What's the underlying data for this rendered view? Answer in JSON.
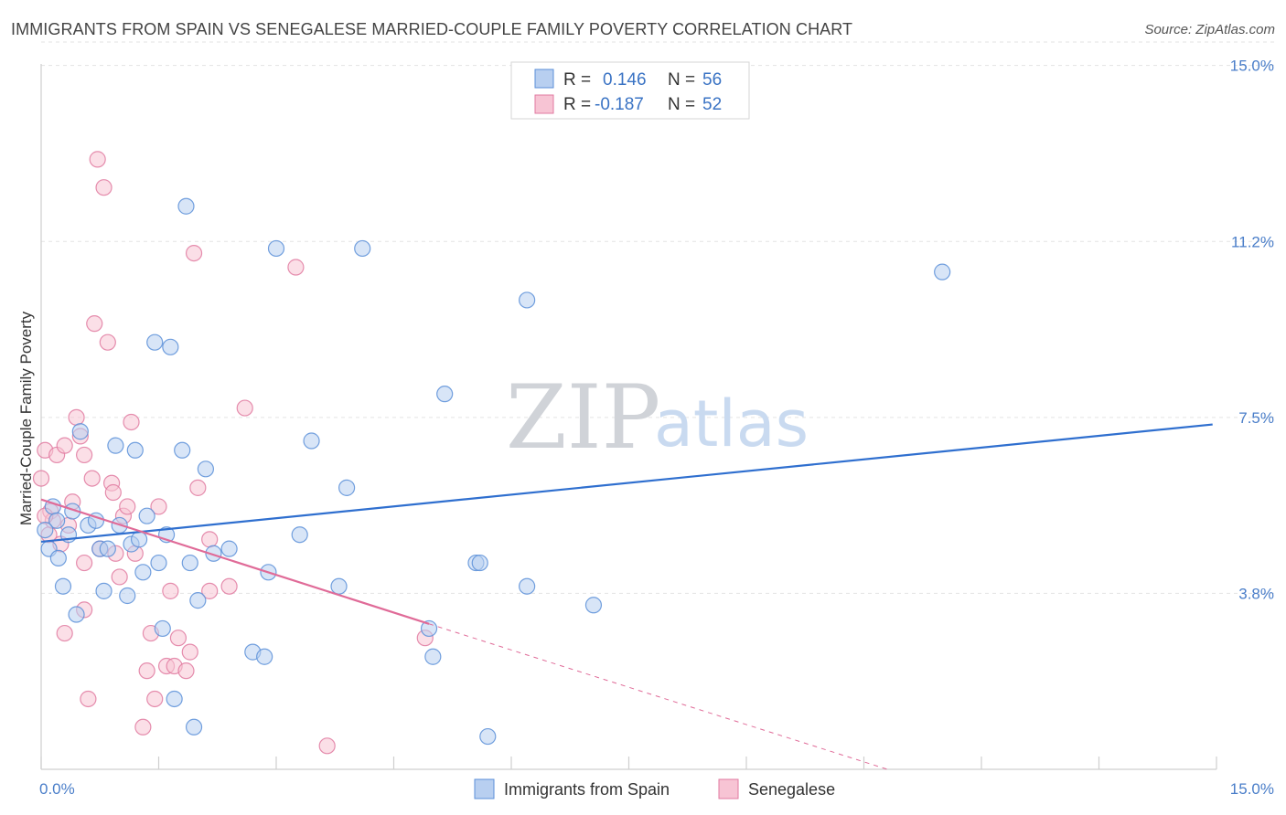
{
  "title": "IMMIGRANTS FROM SPAIN VS SENEGALESE MARRIED-COUPLE FAMILY POVERTY CORRELATION CHART",
  "source": "Source: ZipAtlas.com",
  "watermark": {
    "zip": "ZIP",
    "atlas": "atlas"
  },
  "colors": {
    "blue": "#5b8fd8",
    "blue_fill": "#b8cff0",
    "pink": "#e07aa0",
    "pink_fill": "#f7c4d4",
    "blue_line": "#2f6fcf",
    "pink_line": "#e06b98"
  },
  "legend": {
    "rows": [
      {
        "r_label": "R =",
        "r_value": "0.146",
        "n_label": "N =",
        "n_value": "56"
      },
      {
        "r_label": "R =",
        "r_value": "-0.187",
        "n_label": "N =",
        "n_value": "52"
      }
    ]
  },
  "bottom_legend": [
    "Immigrants from Spain",
    "Senegalese"
  ],
  "chart_data": {
    "type": "scatter",
    "title": "IMMIGRANTS FROM SPAIN VS SENEGALESE MARRIED-COUPLE FAMILY POVERTY CORRELATION CHART",
    "xlabel": "",
    "ylabel": "Married-Couple Family Poverty",
    "xlim": [
      0,
      15
    ],
    "ylim": [
      0,
      15.5
    ],
    "x_tick_labels": [
      "0.0%",
      "15.0%"
    ],
    "y_ticks": [
      3.75,
      7.5,
      11.25,
      15.0
    ],
    "y_tick_labels": [
      "3.8%",
      "7.5%",
      "11.2%",
      "15.0%"
    ],
    "series": [
      {
        "name": "Immigrants from Spain",
        "r": 0.146,
        "n": 56,
        "trend": {
          "x0": 0,
          "y0": 4.85,
          "x1": 14.95,
          "y1": 7.35
        },
        "points": [
          [
            0.1,
            4.7
          ],
          [
            0.15,
            5.6
          ],
          [
            0.2,
            5.3
          ],
          [
            0.22,
            4.5
          ],
          [
            0.28,
            3.9
          ],
          [
            0.35,
            5.0
          ],
          [
            0.45,
            3.3
          ],
          [
            0.5,
            7.2
          ],
          [
            0.6,
            5.2
          ],
          [
            0.7,
            5.3
          ],
          [
            0.75,
            4.7
          ],
          [
            0.8,
            3.8
          ],
          [
            0.85,
            4.7
          ],
          [
            0.95,
            6.9
          ],
          [
            1.0,
            5.2
          ],
          [
            1.1,
            3.7
          ],
          [
            1.15,
            4.8
          ],
          [
            1.2,
            6.8
          ],
          [
            1.25,
            4.9
          ],
          [
            1.3,
            4.2
          ],
          [
            1.35,
            5.4
          ],
          [
            1.45,
            9.1
          ],
          [
            1.5,
            4.4
          ],
          [
            1.55,
            3.0
          ],
          [
            1.6,
            5.0
          ],
          [
            1.65,
            9.0
          ],
          [
            1.7,
            1.5
          ],
          [
            1.8,
            6.8
          ],
          [
            1.85,
            12.0
          ],
          [
            1.9,
            4.4
          ],
          [
            1.95,
            0.9
          ],
          [
            2.0,
            3.6
          ],
          [
            2.1,
            6.4
          ],
          [
            2.2,
            4.6
          ],
          [
            2.4,
            4.7
          ],
          [
            2.7,
            2.5
          ],
          [
            2.85,
            2.4
          ],
          [
            2.9,
            4.2
          ],
          [
            3.0,
            11.1
          ],
          [
            3.3,
            5.0
          ],
          [
            3.45,
            7.0
          ],
          [
            3.8,
            3.9
          ],
          [
            3.9,
            6.0
          ],
          [
            4.1,
            11.1
          ],
          [
            4.95,
            3.0
          ],
          [
            5.0,
            2.4
          ],
          [
            5.15,
            8.0
          ],
          [
            5.55,
            4.4
          ],
          [
            5.6,
            4.4
          ],
          [
            5.7,
            0.7
          ],
          [
            6.2,
            10.0
          ],
          [
            6.2,
            3.9
          ],
          [
            7.05,
            3.5
          ],
          [
            11.5,
            10.6
          ],
          [
            0.05,
            5.1
          ],
          [
            0.4,
            5.5
          ]
        ]
      },
      {
        "name": "Senegalese",
        "r": -0.187,
        "n": 52,
        "trend": {
          "x0": 0,
          "y0": 5.75,
          "x1": 4.95,
          "y1": 3.1
        },
        "trend_dashed": {
          "x0": 4.95,
          "y0": 3.1,
          "x1": 10.8,
          "y1": 0.0
        },
        "points": [
          [
            0.0,
            6.2
          ],
          [
            0.05,
            6.8
          ],
          [
            0.1,
            5.0
          ],
          [
            0.12,
            5.5
          ],
          [
            0.15,
            5.3
          ],
          [
            0.2,
            6.7
          ],
          [
            0.25,
            4.8
          ],
          [
            0.3,
            6.9
          ],
          [
            0.3,
            2.9
          ],
          [
            0.35,
            5.2
          ],
          [
            0.4,
            5.7
          ],
          [
            0.45,
            7.5
          ],
          [
            0.5,
            7.1
          ],
          [
            0.55,
            6.7
          ],
          [
            0.55,
            4.4
          ],
          [
            0.55,
            3.4
          ],
          [
            0.6,
            1.5
          ],
          [
            0.65,
            6.2
          ],
          [
            0.68,
            9.5
          ],
          [
            0.72,
            13.0
          ],
          [
            0.75,
            4.7
          ],
          [
            0.8,
            12.4
          ],
          [
            0.85,
            9.1
          ],
          [
            0.9,
            6.1
          ],
          [
            0.92,
            5.9
          ],
          [
            0.95,
            4.6
          ],
          [
            1.0,
            4.1
          ],
          [
            1.05,
            5.4
          ],
          [
            1.1,
            5.6
          ],
          [
            1.15,
            7.4
          ],
          [
            1.2,
            4.6
          ],
          [
            1.3,
            0.9
          ],
          [
            1.35,
            2.1
          ],
          [
            1.4,
            2.9
          ],
          [
            1.45,
            1.5
          ],
          [
            1.5,
            5.6
          ],
          [
            1.6,
            2.2
          ],
          [
            1.65,
            3.8
          ],
          [
            1.7,
            2.2
          ],
          [
            1.75,
            2.8
          ],
          [
            1.85,
            2.1
          ],
          [
            1.9,
            2.5
          ],
          [
            1.95,
            11.0
          ],
          [
            2.0,
            6.0
          ],
          [
            2.15,
            3.8
          ],
          [
            2.15,
            4.9
          ],
          [
            2.4,
            3.9
          ],
          [
            2.6,
            7.7
          ],
          [
            3.25,
            10.7
          ],
          [
            3.65,
            0.5
          ],
          [
            4.9,
            2.8
          ],
          [
            0.05,
            5.4
          ]
        ]
      }
    ]
  }
}
